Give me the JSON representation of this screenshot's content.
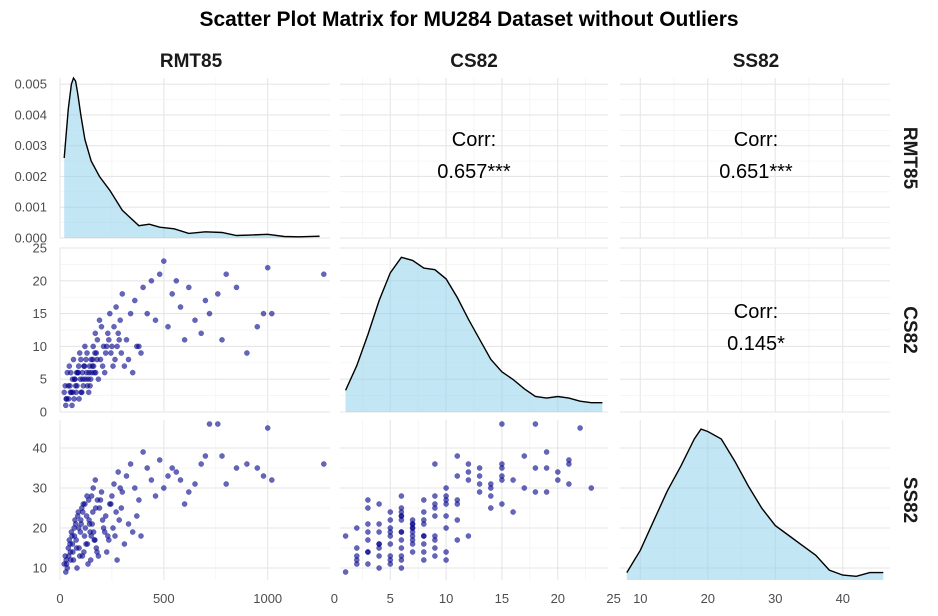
{
  "chart_data": {
    "type": "scatter",
    "title": "Scatter Plot Matrix for MU284 Dataset without Outliers",
    "variables": [
      "RMT85",
      "CS82",
      "SS82"
    ],
    "x_ranges": {
      "RMT85": [
        0,
        1300
      ],
      "CS82": [
        0.5,
        24.5
      ],
      "SS82": [
        7,
        47
      ]
    },
    "y_ranges": {
      "RMT85_density": [
        0,
        0.0052
      ],
      "CS82": [
        0,
        25
      ],
      "SS82": [
        7,
        47
      ]
    },
    "x_ticks": {
      "RMT85": [
        0,
        500,
        1000
      ],
      "CS82": [
        0,
        5,
        10,
        15,
        20,
        25
      ],
      "SS82": [
        10,
        20,
        30,
        40
      ]
    },
    "y_ticks": {
      "RMT85_density": [
        "0.000",
        "0.001",
        "0.002",
        "0.003",
        "0.004",
        "0.005"
      ],
      "CS82": [
        0,
        5,
        10,
        15,
        20,
        25
      ],
      "SS82": [
        10,
        20,
        30,
        40
      ]
    },
    "correlations": [
      {
        "row": "RMT85",
        "col": "CS82",
        "label": "Corr:",
        "value": "0.657***"
      },
      {
        "row": "RMT85",
        "col": "SS82",
        "label": "Corr:",
        "value": "0.651***"
      },
      {
        "row": "CS82",
        "col": "SS82",
        "label": "Corr:",
        "value": "0.145*"
      }
    ],
    "densities": {
      "RMT85": {
        "x": [
          20,
          40,
          55,
          65,
          75,
          85,
          100,
          120,
          150,
          190,
          240,
          300,
          380,
          430,
          480,
          550,
          620,
          700,
          780,
          850,
          930,
          1000,
          1080,
          1150,
          1250
        ],
        "y": [
          0.0026,
          0.0042,
          0.005,
          0.0052,
          0.0051,
          0.0047,
          0.004,
          0.0032,
          0.0025,
          0.002,
          0.00155,
          0.0009,
          0.0004,
          0.00045,
          0.00035,
          0.0003,
          0.00015,
          0.0002,
          0.00018,
          8e-05,
          0.0001,
          0.00012,
          5e-05,
          4e-05,
          6e-05
        ]
      },
      "CS82": {
        "x": [
          1,
          2,
          3,
          4,
          5,
          6,
          7,
          8,
          9,
          10,
          11,
          12,
          13,
          14,
          15,
          16,
          17,
          18,
          19,
          20,
          21,
          22,
          23,
          24
        ],
        "y": [
          0.014,
          0.03,
          0.05,
          0.072,
          0.09,
          0.1,
          0.098,
          0.093,
          0.092,
          0.086,
          0.074,
          0.06,
          0.047,
          0.034,
          0.026,
          0.021,
          0.015,
          0.01,
          0.009,
          0.01,
          0.009,
          0.007,
          0.006,
          0.006
        ]
      },
      "SS82": {
        "x": [
          8,
          10,
          12,
          14,
          16,
          18,
          19,
          20,
          22,
          24,
          26,
          28,
          30,
          32,
          34,
          36,
          38,
          40,
          42,
          44,
          46
        ],
        "y": [
          0.003,
          0.012,
          0.024,
          0.036,
          0.046,
          0.057,
          0.061,
          0.06,
          0.057,
          0.048,
          0.038,
          0.029,
          0.022,
          0.018,
          0.014,
          0.01,
          0.004,
          0.002,
          0.0015,
          0.003,
          0.003
        ]
      }
    },
    "points": [
      [
        30,
        2,
        12
      ],
      [
        50,
        3,
        14
      ],
      [
        60,
        5,
        16
      ],
      [
        70,
        5,
        18
      ],
      [
        80,
        6,
        15
      ],
      [
        90,
        7,
        20
      ],
      [
        100,
        8,
        22
      ],
      [
        110,
        5,
        24
      ],
      [
        120,
        10,
        26
      ],
      [
        130,
        9,
        28
      ],
      [
        140,
        6,
        22
      ],
      [
        150,
        8,
        18
      ],
      [
        160,
        10,
        30
      ],
      [
        170,
        12,
        32
      ],
      [
        180,
        11,
        27
      ],
      [
        190,
        14,
        25
      ],
      [
        200,
        13,
        29
      ],
      [
        210,
        10,
        20
      ],
      [
        220,
        9,
        23
      ],
      [
        230,
        12,
        18
      ],
      [
        240,
        15,
        26
      ],
      [
        250,
        10,
        28
      ],
      [
        260,
        13,
        31
      ],
      [
        270,
        16,
        24
      ],
      [
        280,
        12,
        34
      ],
      [
        290,
        14,
        30
      ],
      [
        300,
        18,
        29
      ],
      [
        320,
        11,
        33
      ],
      [
        340,
        15,
        36
      ],
      [
        360,
        17,
        30
      ],
      [
        380,
        10,
        27
      ],
      [
        400,
        19,
        39
      ],
      [
        420,
        15,
        35
      ],
      [
        440,
        20,
        32
      ],
      [
        460,
        14,
        28
      ],
      [
        480,
        21,
        37
      ],
      [
        500,
        23,
        30
      ],
      [
        520,
        13,
        33
      ],
      [
        540,
        18,
        35
      ],
      [
        560,
        20,
        34
      ],
      [
        580,
        16,
        32
      ],
      [
        600,
        11,
        26
      ],
      [
        620,
        19,
        29
      ],
      [
        650,
        14,
        31
      ],
      [
        680,
        12,
        36
      ],
      [
        700,
        17,
        38
      ],
      [
        720,
        15,
        46
      ],
      [
        760,
        18,
        46
      ],
      [
        780,
        11,
        38
      ],
      [
        800,
        21,
        31
      ],
      [
        850,
        19,
        35
      ],
      [
        900,
        9,
        36
      ],
      [
        950,
        13,
        35
      ],
      [
        980,
        15,
        33
      ],
      [
        1000,
        22,
        45
      ],
      [
        1020,
        15,
        32
      ],
      [
        1270,
        21,
        36
      ],
      [
        20,
        3,
        11
      ],
      [
        25,
        4,
        13
      ],
      [
        35,
        6,
        10
      ],
      [
        40,
        4,
        15
      ],
      [
        45,
        7,
        17
      ],
      [
        55,
        3,
        19
      ],
      [
        65,
        8,
        12
      ],
      [
        75,
        4,
        21
      ],
      [
        85,
        6,
        23
      ],
      [
        95,
        9,
        13
      ],
      [
        105,
        3,
        25
      ],
      [
        115,
        7,
        14
      ],
      [
        125,
        8,
        16
      ],
      [
        135,
        5,
        11
      ],
      [
        145,
        4,
        19
      ],
      [
        155,
        7,
        21
      ],
      [
        165,
        6,
        17
      ],
      [
        175,
        9,
        15
      ],
      [
        185,
        5,
        13
      ],
      [
        195,
        8,
        27
      ],
      [
        205,
        7,
        22
      ],
      [
        215,
        6,
        19
      ],
      [
        225,
        10,
        14
      ],
      [
        235,
        11,
        17
      ],
      [
        245,
        9,
        26
      ],
      [
        255,
        7,
        20
      ],
      [
        265,
        8,
        18
      ],
      [
        275,
        10,
        12
      ],
      [
        285,
        11,
        22
      ],
      [
        295,
        9,
        25
      ],
      [
        310,
        7,
        16
      ],
      [
        330,
        8,
        21
      ],
      [
        350,
        6,
        19
      ],
      [
        370,
        10,
        23
      ],
      [
        390,
        9,
        18
      ],
      [
        28,
        1,
        9
      ],
      [
        32,
        2,
        11
      ],
      [
        42,
        2,
        13
      ],
      [
        48,
        4,
        16
      ],
      [
        52,
        6,
        12
      ],
      [
        58,
        1,
        18
      ],
      [
        62,
        3,
        14
      ],
      [
        68,
        2,
        20
      ],
      [
        72,
        5,
        22
      ],
      [
        78,
        3,
        17
      ],
      [
        82,
        4,
        10
      ],
      [
        88,
        6,
        24
      ],
      [
        92,
        2,
        15
      ],
      [
        98,
        5,
        19
      ],
      [
        102,
        3,
        21
      ],
      [
        108,
        6,
        13
      ],
      [
        112,
        4,
        26
      ],
      [
        118,
        7,
        18
      ],
      [
        122,
        5,
        20
      ],
      [
        128,
        6,
        23
      ],
      [
        132,
        4,
        16
      ],
      [
        138,
        3,
        27
      ],
      [
        142,
        7,
        21
      ],
      [
        148,
        5,
        12
      ],
      [
        152,
        6,
        28
      ],
      [
        158,
        8,
        24
      ],
      [
        162,
        7,
        19
      ],
      [
        168,
        9,
        17
      ],
      [
        172,
        6,
        25
      ],
      [
        178,
        8,
        14
      ]
    ]
  }
}
